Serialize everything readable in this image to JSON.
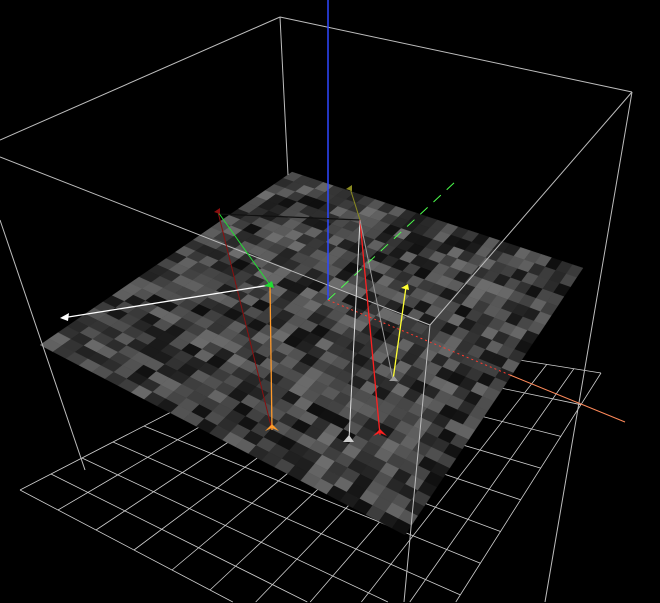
{
  "scene": {
    "background": "#000000",
    "wireframe_color": "#bdbdbd",
    "floor_grid_color": "#cfcfcf",
    "heightmap_cells": 28,
    "axes": {
      "x": "#ff3b2f",
      "x_end": "#ff8a5a",
      "y": "#4cff4c",
      "z": "#2f49ff"
    },
    "markers": [
      {
        "name": "orange-pin",
        "color": "#ff9a2a"
      },
      {
        "name": "green-pin",
        "color": "#22dd33"
      },
      {
        "name": "white-pin",
        "color": "#ffffff"
      },
      {
        "name": "red-pin",
        "color": "#ff2020"
      },
      {
        "name": "yellow-pin",
        "color": "#ffff33"
      },
      {
        "name": "gray-pin",
        "color": "#9a9a9a"
      },
      {
        "name": "dark-red-pin",
        "color": "#8a1010"
      },
      {
        "name": "olive-pin",
        "color": "#8a8a20"
      }
    ]
  }
}
